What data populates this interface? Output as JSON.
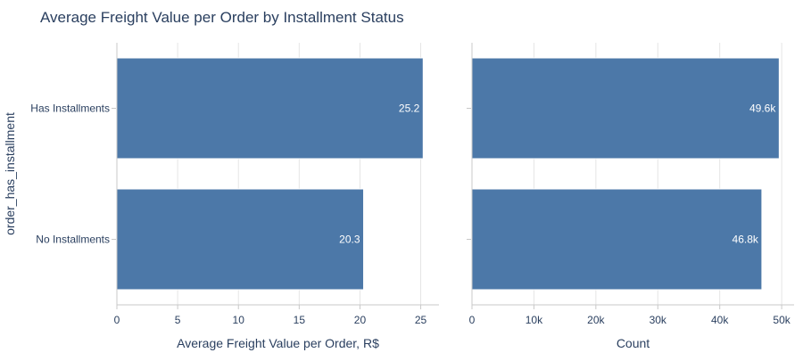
{
  "chart_data": {
    "title": "Average Freight Value per Order by Installment Status",
    "ylabel": "order_has_installment",
    "categories": [
      "Has Installments",
      "No Installments"
    ],
    "bar_color": "#4c78a8",
    "panels": [
      {
        "type": "bar",
        "orientation": "horizontal",
        "xlabel": "Average Freight Value per Order, R$",
        "values": [
          25.2,
          20.3
        ],
        "value_labels": [
          "25.2",
          "20.3"
        ],
        "xlim": [
          0,
          26.5
        ],
        "ticks": [
          0,
          5,
          10,
          15,
          20,
          25
        ],
        "tick_labels": [
          "0",
          "5",
          "10",
          "15",
          "20",
          "25"
        ]
      },
      {
        "type": "bar",
        "orientation": "horizontal",
        "xlabel": "Count",
        "values": [
          49600,
          46800
        ],
        "value_labels": [
          "49.6k",
          "46.8k"
        ],
        "xlim": [
          0,
          52000
        ],
        "ticks": [
          0,
          10000,
          20000,
          30000,
          40000,
          50000
        ],
        "tick_labels": [
          "0",
          "10k",
          "20k",
          "30k",
          "40k",
          "50k"
        ]
      }
    ]
  }
}
